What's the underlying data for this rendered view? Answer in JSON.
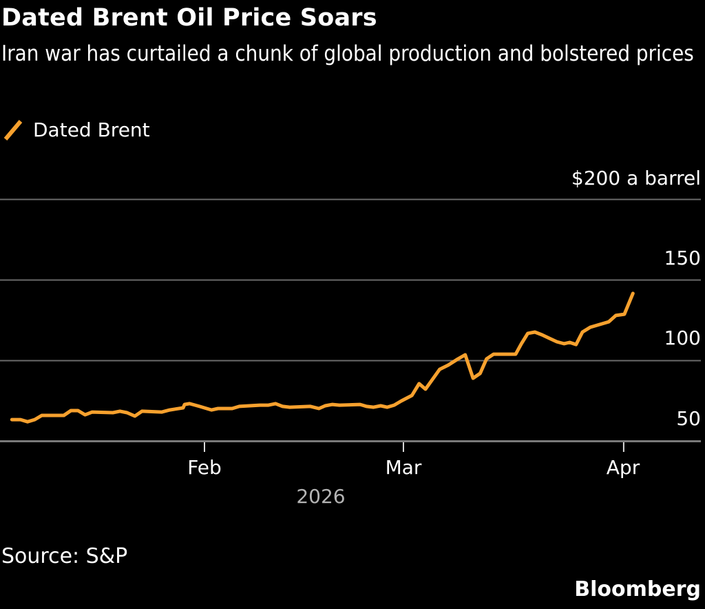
{
  "header": {
    "title": "Dated Brent Oil Price Soars",
    "subtitle": "Iran war has curtailed a chunk of global production and bolstered prices"
  },
  "footer": {
    "source": "Source: S&P",
    "brand": "Bloomberg"
  },
  "chart_data": {
    "type": "line",
    "title": "Dated Brent Oil Price Soars",
    "subtitle": "Iran war has curtailed a chunk of global production and bolstered prices",
    "xlabel": "2026",
    "ylabel": "$ a barrel",
    "ylim": [
      50,
      200
    ],
    "yticks": [
      {
        "value": 200,
        "label": "$200 a barrel"
      },
      {
        "value": 150,
        "label": "150"
      },
      {
        "value": 100,
        "label": "100"
      },
      {
        "value": 50,
        "label": "50"
      }
    ],
    "xticks": [
      {
        "day": 0,
        "label": "Feb"
      },
      {
        "day": 28,
        "label": "Mar"
      },
      {
        "day": 59,
        "label": "Apr"
      }
    ],
    "x_unit": "days from 2026-02-01",
    "grid": true,
    "legend": {
      "position": "top-left",
      "entries": [
        {
          "name": "Dated Brent",
          "color": "#f7a12e"
        }
      ]
    },
    "series": [
      {
        "name": "Dated Brent",
        "color": "#f7a12e",
        "points": [
          [
            -27.1,
            63.2
          ],
          [
            -25.9,
            63.2
          ],
          [
            -24.9,
            61.9
          ],
          [
            -23.9,
            63.2
          ],
          [
            -22.9,
            65.8
          ],
          [
            -19.8,
            65.8
          ],
          [
            -18.8,
            68.8
          ],
          [
            -17.8,
            68.8
          ],
          [
            -16.8,
            66.2
          ],
          [
            -15.8,
            67.9
          ],
          [
            -12.9,
            67.5
          ],
          [
            -11.9,
            68.4
          ],
          [
            -10.9,
            67.5
          ],
          [
            -9.8,
            65.4
          ],
          [
            -8.8,
            68.4
          ],
          [
            -6.0,
            67.9
          ],
          [
            -4.9,
            69.2
          ],
          [
            -3.0,
            70.5
          ],
          [
            -2.8,
            72.6
          ],
          [
            -2.1,
            73.1
          ],
          [
            -0.7,
            71.4
          ],
          [
            1.0,
            69.2
          ],
          [
            1.9,
            70.1
          ],
          [
            3.9,
            70.1
          ],
          [
            4.9,
            71.4
          ],
          [
            7.8,
            72.2
          ],
          [
            9.0,
            72.2
          ],
          [
            10.0,
            73.1
          ],
          [
            11.0,
            71.4
          ],
          [
            12.0,
            70.9
          ],
          [
            14.9,
            71.4
          ],
          [
            16.1,
            70.1
          ],
          [
            17.0,
            71.8
          ],
          [
            18.0,
            72.6
          ],
          [
            19.0,
            72.2
          ],
          [
            21.9,
            72.6
          ],
          [
            22.8,
            71.4
          ],
          [
            23.8,
            70.9
          ],
          [
            24.8,
            71.8
          ],
          [
            25.7,
            70.9
          ],
          [
            26.7,
            72.2
          ],
          [
            27.7,
            74.8
          ],
          [
            29.2,
            78.2
          ],
          [
            30.2,
            85.5
          ],
          [
            31.1,
            82.1
          ],
          [
            33.1,
            94.4
          ],
          [
            34.3,
            97.0
          ],
          [
            35.5,
            100.4
          ],
          [
            36.7,
            103.4
          ],
          [
            37.8,
            88.9
          ],
          [
            38.8,
            91.9
          ],
          [
            39.7,
            100.9
          ],
          [
            40.7,
            103.8
          ],
          [
            43.8,
            103.8
          ],
          [
            44.6,
            110.3
          ],
          [
            45.5,
            116.7
          ],
          [
            46.5,
            117.5
          ],
          [
            47.5,
            115.8
          ],
          [
            48.5,
            113.7
          ],
          [
            49.6,
            111.5
          ],
          [
            50.6,
            110.3
          ],
          [
            51.4,
            111.1
          ],
          [
            52.3,
            109.8
          ],
          [
            53.2,
            117.5
          ],
          [
            54.3,
            120.5
          ],
          [
            56.9,
            123.9
          ],
          [
            57.9,
            127.8
          ],
          [
            59.1,
            128.6
          ],
          [
            60.3,
            141.5
          ]
        ]
      }
    ]
  }
}
